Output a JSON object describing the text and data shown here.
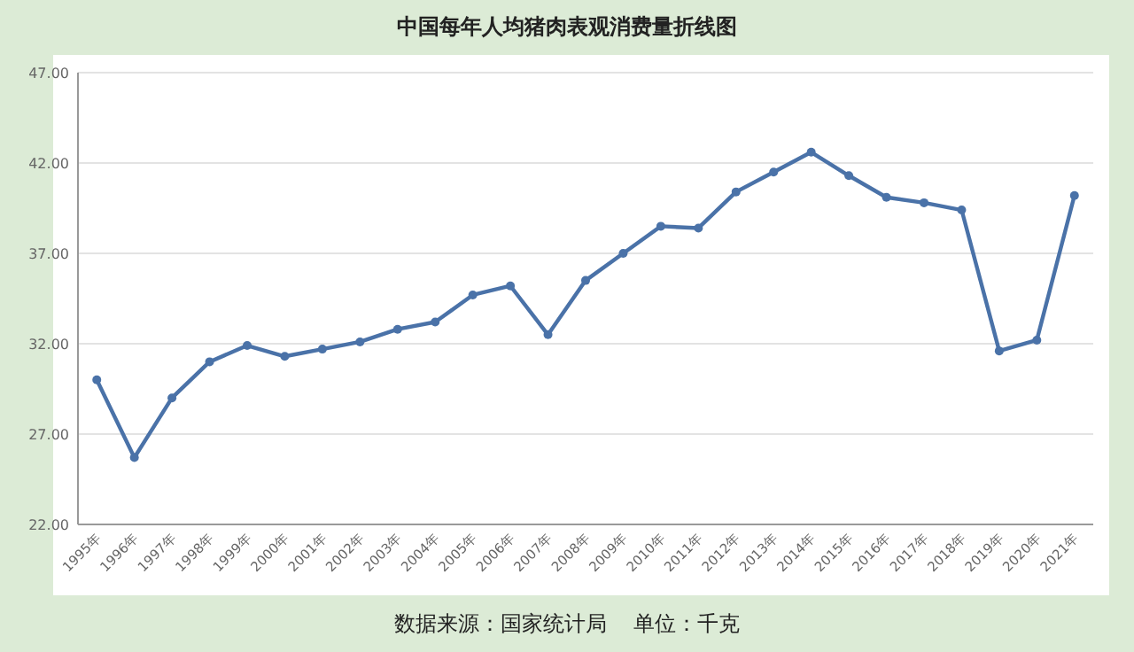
{
  "chart_data": {
    "type": "line",
    "title": "中国每年人均猪肉表观消费量折线图",
    "categories": [
      "1995年",
      "1996年",
      "1997年",
      "1998年",
      "1999年",
      "2000年",
      "2001年",
      "2002年",
      "2003年",
      "2004年",
      "2005年",
      "2006年",
      "2007年",
      "2008年",
      "2009年",
      "2010年",
      "2011年",
      "2012年",
      "2013年",
      "2014年",
      "2015年",
      "2016年",
      "2017年",
      "2018年",
      "2019年",
      "2020年",
      "2021年"
    ],
    "series": [
      {
        "color": "#4a72a8",
        "values": [
          30.0,
          25.7,
          29.0,
          31.0,
          31.9,
          31.3,
          31.7,
          32.1,
          32.8,
          33.2,
          34.7,
          35.2,
          32.5,
          35.5,
          37.0,
          38.5,
          38.4,
          40.4,
          41.5,
          42.6,
          41.3,
          40.1,
          39.8,
          39.4,
          31.6,
          32.2,
          40.2
        ]
      }
    ],
    "ylim": [
      22,
      47
    ],
    "yticks": [
      {
        "value": 22,
        "label": "22.00"
      },
      {
        "value": 27,
        "label": "27.00"
      },
      {
        "value": 32,
        "label": "32.00"
      },
      {
        "value": 37,
        "label": "37.00"
      },
      {
        "value": 42,
        "label": "42.00"
      },
      {
        "value": 47,
        "label": "47.00"
      }
    ],
    "grid": "y",
    "marker": "circle",
    "line_style": "solid",
    "annotations": [
      "数据来源：国家统计局    单位：千克"
    ]
  }
}
